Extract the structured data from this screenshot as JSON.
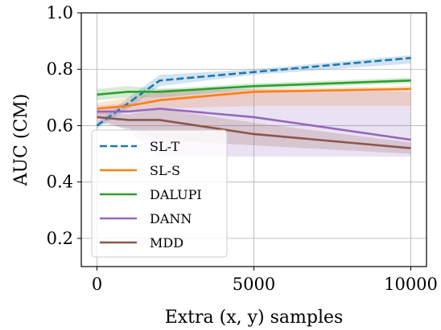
{
  "chart_data": {
    "type": "line",
    "xlabel": "Extra (x, y) samples",
    "ylabel": "AUC (CM)",
    "xlim": [
      -500,
      10500
    ],
    "ylim": [
      0.1,
      1.0
    ],
    "xticks": [
      0,
      5000,
      10000
    ],
    "xtick_labels": [
      "0",
      "5000",
      "10000"
    ],
    "yticks": [
      0.2,
      0.4,
      0.6,
      0.8,
      1.0
    ],
    "ytick_labels": [
      "0.2",
      "0.4",
      "0.6",
      "0.8",
      "1.0"
    ],
    "grid": true,
    "legend_position": "lower-left",
    "x": [
      0,
      1000,
      2000,
      5000,
      10000
    ],
    "series": [
      {
        "name": "SL-T",
        "color": "#1f77b4",
        "dashed": true,
        "values": [
          0.6,
          0.68,
          0.76,
          0.79,
          0.84
        ],
        "lower": [
          0.59,
          0.66,
          0.74,
          0.78,
          0.82
        ],
        "upper": [
          0.61,
          0.7,
          0.78,
          0.8,
          0.85
        ]
      },
      {
        "name": "SL-S",
        "color": "#ff7f0e",
        "dashed": false,
        "values": [
          0.66,
          0.67,
          0.69,
          0.72,
          0.73
        ],
        "lower": [
          0.64,
          0.65,
          0.66,
          0.67,
          0.67
        ],
        "upper": [
          0.68,
          0.7,
          0.72,
          0.73,
          0.74
        ]
      },
      {
        "name": "DALUPI",
        "color": "#2ca02c",
        "dashed": false,
        "values": [
          0.71,
          0.72,
          0.72,
          0.74,
          0.76
        ],
        "lower": [
          0.69,
          0.7,
          0.7,
          0.73,
          0.75
        ],
        "upper": [
          0.73,
          0.74,
          0.73,
          0.75,
          0.77
        ]
      },
      {
        "name": "DANN",
        "color": "#9467bd",
        "dashed": false,
        "values": [
          0.65,
          0.65,
          0.66,
          0.63,
          0.55
        ],
        "lower": [
          0.63,
          0.58,
          0.49,
          0.49,
          0.49
        ],
        "upper": [
          0.67,
          0.68,
          0.73,
          0.73,
          0.72
        ]
      },
      {
        "name": "MDD",
        "color": "#8c564b",
        "dashed": false,
        "values": [
          0.63,
          0.62,
          0.62,
          0.57,
          0.52
        ],
        "lower": [
          0.61,
          0.59,
          0.55,
          0.53,
          0.5
        ],
        "upper": [
          0.65,
          0.64,
          0.66,
          0.61,
          0.54
        ]
      }
    ]
  }
}
